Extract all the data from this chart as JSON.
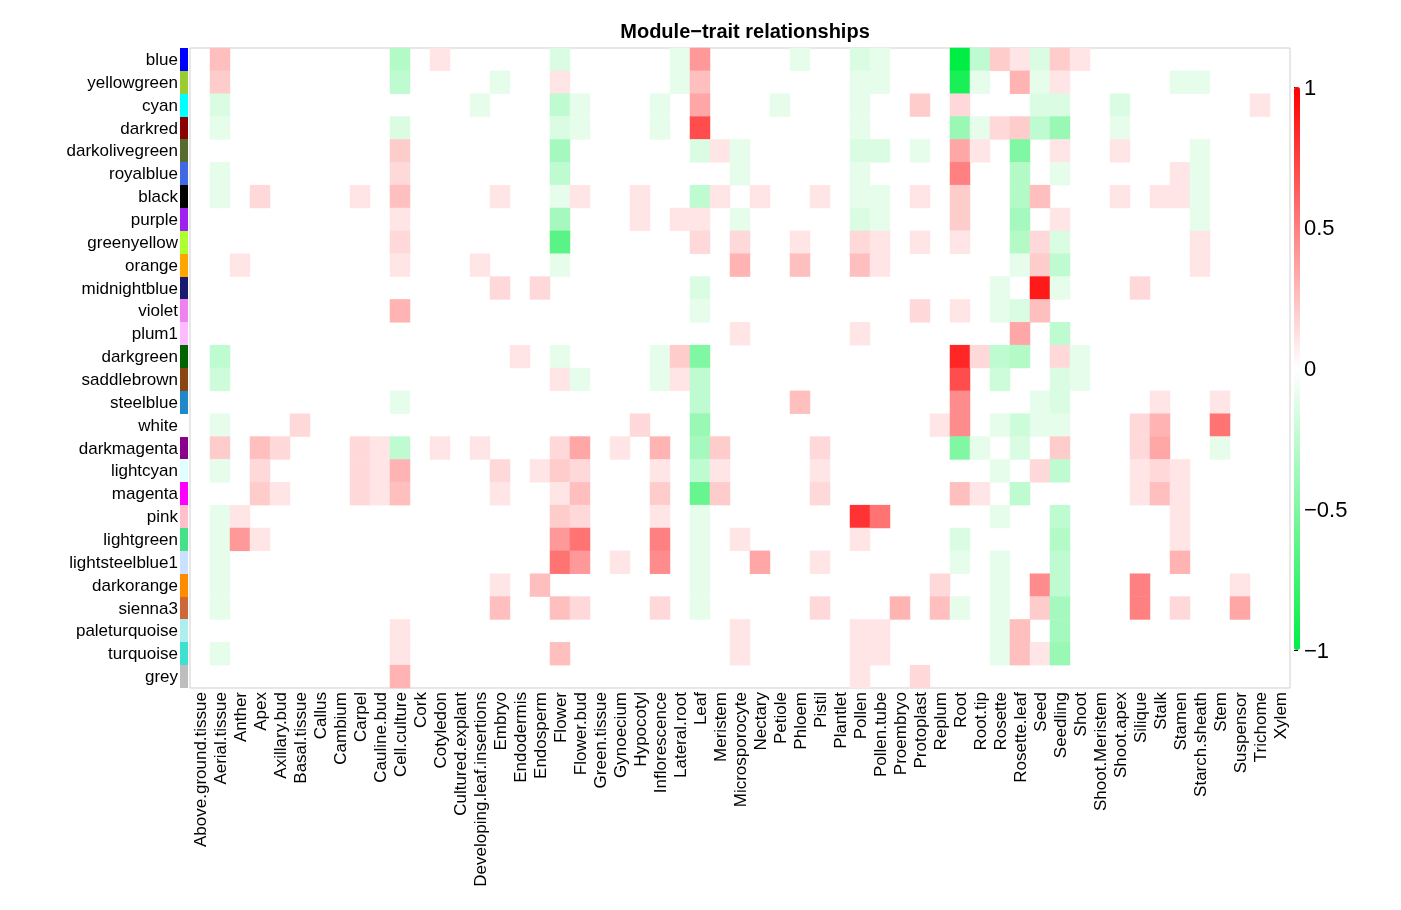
{
  "chart_data": {
    "type": "heatmap",
    "title": "Module−trait relationships",
    "categories": [
      "Above.ground.tissue",
      "Aerial.tissue",
      "Anther",
      "Apex",
      "Axillary.bud",
      "Basal.tissue",
      "Callus",
      "Cambium",
      "Carpel",
      "Cauline.bud",
      "Cell.culture",
      "Cork",
      "Cotyledon",
      "Cultured.explant",
      "Developing.leaf.insertions",
      "Embryo",
      "Endodermis",
      "Endosperm",
      "Flower",
      "Flower.bud",
      "Green.tissue",
      "Gynoecium",
      "Hypocotyl",
      "Inflorescence",
      "Lateral.root",
      "Leaf",
      "Meristem",
      "Microsporocyte",
      "Nectary",
      "Petiole",
      "Phloem",
      "Pistil",
      "Plantlet",
      "Pollen",
      "Pollen.tube",
      "Proembryo",
      "Protoplast",
      "Replum",
      "Root",
      "Root.tip",
      "Rosette",
      "Rosette.leaf",
      "Seed",
      "Seedling",
      "Shoot",
      "Shoot.Meristem",
      "Shoot.apex",
      "Silique",
      "Stalk",
      "Stamen",
      "Starch.sheath",
      "Stem",
      "Suspensor",
      "Trichome",
      "Xylem"
    ],
    "y_categories": [
      "blue",
      "yellowgreen",
      "cyan",
      "darkred",
      "darkolivegreen",
      "royalblue",
      "black",
      "purple",
      "greenyellow",
      "orange",
      "midnightblue",
      "violet",
      "plum1",
      "darkgreen",
      "saddlebrown",
      "steelblue",
      "white",
      "darkmagenta",
      "lightcyan",
      "magenta",
      "pink",
      "lightgreen",
      "lightsteelblue1",
      "darkorange",
      "sienna3",
      "paleturquoise",
      "turquoise",
      "grey"
    ],
    "colors": [
      "#0000ff",
      "#9acd32",
      "#00ffff",
      "#8b0000",
      "#556b2f",
      "#4169e1",
      "#000000",
      "#a020f0",
      "#adff2f",
      "#ffa500",
      "#191970",
      "#ee82ee",
      "#ffbbff",
      "#006400",
      "#8b4513",
      "#1e88c8",
      "#ffffff",
      "#8b008b",
      "#e0ffff",
      "#ff00ff",
      "#ffc0cb",
      "#44e08a",
      "#cae1ff",
      "#ff8c00",
      "#cd6839",
      "#afeeee",
      "#40e0d0",
      "#bebebe"
    ],
    "clim": [
      -1,
      1
    ],
    "cticks": [
      {
        "value": -1,
        "label": "−1"
      },
      {
        "value": -0.5,
        "label": "−0.5"
      },
      0,
      0.5,
      1
    ],
    "cells": [
      [
        null,
        0.25,
        null,
        null,
        null,
        null,
        null,
        null,
        null,
        null,
        -0.3,
        null,
        0.1,
        null,
        null,
        null,
        null,
        null,
        -0.15,
        null,
        null,
        null,
        null,
        null,
        -0.1,
        0.4,
        null,
        null,
        null,
        null,
        -0.1,
        null,
        null,
        -0.15,
        -0.1,
        null,
        null,
        null,
        -1,
        -0.25,
        0.2,
        0.1,
        -0.15,
        0.2,
        0.1,
        null,
        null,
        null,
        null,
        null,
        null,
        null,
        null,
        null,
        null
      ],
      [
        null,
        0.2,
        null,
        null,
        null,
        null,
        null,
        null,
        null,
        null,
        -0.25,
        null,
        null,
        null,
        null,
        -0.1,
        null,
        null,
        0.1,
        null,
        null,
        null,
        null,
        null,
        -0.1,
        0.25,
        null,
        null,
        null,
        null,
        null,
        null,
        null,
        -0.1,
        -0.1,
        null,
        null,
        null,
        -0.9,
        -0.1,
        null,
        0.3,
        -0.1,
        0.1,
        null,
        null,
        null,
        null,
        null,
        -0.1,
        -0.1,
        null,
        null,
        null,
        null
      ],
      [
        null,
        -0.15,
        null,
        null,
        null,
        null,
        null,
        null,
        null,
        null,
        null,
        null,
        null,
        null,
        -0.1,
        null,
        null,
        null,
        -0.25,
        -0.1,
        null,
        null,
        null,
        -0.1,
        null,
        0.35,
        null,
        null,
        null,
        -0.1,
        null,
        null,
        null,
        -0.1,
        null,
        null,
        0.2,
        null,
        0.15,
        null,
        null,
        null,
        -0.15,
        -0.15,
        null,
        null,
        -0.15,
        null,
        null,
        null,
        null,
        null,
        null,
        0.1,
        null
      ],
      [
        null,
        -0.1,
        null,
        null,
        null,
        null,
        null,
        null,
        null,
        null,
        -0.15,
        null,
        null,
        null,
        null,
        null,
        null,
        null,
        -0.15,
        -0.1,
        null,
        null,
        null,
        -0.1,
        null,
        0.7,
        null,
        null,
        null,
        null,
        null,
        null,
        null,
        -0.1,
        null,
        null,
        null,
        null,
        -0.4,
        -0.1,
        0.15,
        0.2,
        -0.25,
        -0.4,
        null,
        null,
        -0.1,
        null,
        null,
        null,
        null,
        null,
        null,
        null,
        null
      ],
      [
        null,
        null,
        null,
        null,
        null,
        null,
        null,
        null,
        null,
        null,
        0.2,
        null,
        null,
        null,
        null,
        null,
        null,
        null,
        -0.35,
        null,
        null,
        null,
        null,
        null,
        null,
        -0.15,
        0.1,
        -0.1,
        null,
        null,
        null,
        null,
        null,
        -0.15,
        -0.15,
        null,
        -0.1,
        null,
        0.35,
        0.1,
        null,
        -0.5,
        null,
        0.1,
        null,
        null,
        0.1,
        null,
        null,
        null,
        -0.1,
        null,
        null,
        null,
        null
      ],
      [
        null,
        -0.1,
        null,
        null,
        null,
        null,
        null,
        null,
        null,
        null,
        0.15,
        null,
        null,
        null,
        null,
        null,
        null,
        null,
        -0.25,
        null,
        null,
        null,
        null,
        null,
        null,
        null,
        null,
        -0.1,
        null,
        null,
        null,
        null,
        null,
        -0.1,
        null,
        null,
        null,
        null,
        0.5,
        null,
        null,
        -0.3,
        null,
        -0.1,
        null,
        null,
        null,
        null,
        null,
        0.1,
        -0.1,
        null,
        null,
        null,
        null
      ],
      [
        null,
        -0.1,
        null,
        0.15,
        null,
        null,
        null,
        null,
        0.1,
        null,
        0.25,
        null,
        null,
        null,
        null,
        0.1,
        null,
        null,
        -0.1,
        0.1,
        null,
        null,
        0.1,
        null,
        null,
        -0.25,
        0.1,
        null,
        0.1,
        null,
        null,
        0.1,
        null,
        -0.1,
        -0.1,
        null,
        0.1,
        null,
        0.2,
        null,
        null,
        -0.3,
        0.25,
        null,
        null,
        null,
        0.1,
        null,
        0.1,
        0.1,
        -0.1,
        null,
        null,
        null,
        null
      ],
      [
        null,
        null,
        null,
        null,
        null,
        null,
        null,
        null,
        null,
        null,
        0.1,
        null,
        null,
        null,
        null,
        null,
        null,
        null,
        -0.35,
        null,
        null,
        null,
        0.1,
        null,
        0.1,
        0.1,
        null,
        -0.1,
        null,
        null,
        null,
        null,
        null,
        -0.15,
        -0.1,
        null,
        null,
        null,
        0.2,
        null,
        null,
        -0.35,
        null,
        0.1,
        null,
        null,
        null,
        null,
        null,
        null,
        -0.1,
        null,
        null,
        null,
        null
      ],
      [
        null,
        null,
        null,
        null,
        null,
        null,
        null,
        null,
        null,
        null,
        0.15,
        null,
        null,
        null,
        null,
        null,
        null,
        null,
        -0.65,
        null,
        null,
        null,
        null,
        null,
        null,
        0.15,
        null,
        0.15,
        null,
        null,
        0.1,
        null,
        null,
        0.15,
        0.1,
        null,
        0.1,
        null,
        0.1,
        null,
        null,
        -0.3,
        0.15,
        -0.15,
        null,
        null,
        null,
        null,
        null,
        null,
        0.1,
        null,
        null,
        null,
        null
      ],
      [
        null,
        null,
        0.1,
        null,
        null,
        null,
        null,
        null,
        null,
        null,
        0.1,
        null,
        null,
        null,
        0.1,
        null,
        null,
        null,
        -0.1,
        null,
        null,
        null,
        null,
        null,
        null,
        null,
        null,
        0.3,
        null,
        null,
        0.25,
        null,
        null,
        0.25,
        0.1,
        null,
        null,
        null,
        null,
        null,
        null,
        -0.1,
        0.2,
        -0.25,
        null,
        null,
        null,
        null,
        null,
        null,
        0.1,
        null,
        null,
        null,
        null
      ],
      [
        null,
        null,
        null,
        null,
        null,
        null,
        null,
        null,
        null,
        null,
        null,
        null,
        null,
        null,
        null,
        0.15,
        null,
        0.15,
        null,
        null,
        null,
        null,
        null,
        null,
        null,
        -0.15,
        null,
        null,
        null,
        null,
        null,
        null,
        null,
        null,
        null,
        null,
        null,
        null,
        null,
        null,
        -0.1,
        null,
        0.9,
        -0.1,
        null,
        null,
        null,
        0.15,
        null,
        null,
        null,
        null,
        null,
        null,
        null
      ],
      [
        null,
        null,
        null,
        null,
        null,
        null,
        null,
        null,
        null,
        null,
        0.3,
        null,
        null,
        null,
        null,
        null,
        null,
        null,
        null,
        null,
        null,
        null,
        null,
        null,
        null,
        -0.1,
        null,
        null,
        null,
        null,
        null,
        null,
        null,
        null,
        null,
        null,
        0.15,
        null,
        0.1,
        null,
        -0.1,
        -0.15,
        0.25,
        null,
        null,
        null,
        null,
        null,
        null,
        null,
        null,
        null,
        null,
        null,
        null
      ],
      [
        null,
        null,
        null,
        null,
        null,
        null,
        null,
        null,
        null,
        null,
        null,
        null,
        null,
        null,
        null,
        null,
        null,
        null,
        null,
        null,
        null,
        null,
        null,
        null,
        null,
        null,
        null,
        0.1,
        null,
        null,
        null,
        null,
        null,
        0.1,
        null,
        null,
        null,
        null,
        null,
        null,
        null,
        0.35,
        null,
        -0.25,
        null,
        null,
        null,
        null,
        null,
        null,
        null,
        null,
        null,
        null,
        null
      ],
      [
        null,
        -0.25,
        null,
        null,
        null,
        null,
        null,
        null,
        null,
        null,
        null,
        null,
        null,
        null,
        null,
        null,
        0.1,
        null,
        -0.1,
        null,
        null,
        null,
        null,
        -0.1,
        0.2,
        -0.5,
        null,
        null,
        null,
        null,
        null,
        null,
        null,
        null,
        null,
        null,
        null,
        null,
        0.85,
        0.15,
        -0.25,
        -0.3,
        null,
        0.15,
        -0.1,
        null,
        null,
        null,
        null,
        null,
        null,
        null,
        null,
        null,
        null
      ],
      [
        null,
        -0.2,
        null,
        null,
        null,
        null,
        null,
        null,
        null,
        null,
        null,
        null,
        null,
        null,
        null,
        null,
        null,
        null,
        0.1,
        -0.1,
        null,
        null,
        null,
        -0.1,
        0.1,
        -0.25,
        null,
        null,
        null,
        null,
        null,
        null,
        null,
        null,
        null,
        null,
        null,
        null,
        0.7,
        null,
        -0.2,
        null,
        null,
        -0.15,
        -0.1,
        null,
        null,
        null,
        null,
        null,
        null,
        null,
        null,
        null,
        null
      ],
      [
        null,
        null,
        null,
        null,
        null,
        null,
        null,
        null,
        null,
        null,
        -0.1,
        null,
        null,
        null,
        null,
        null,
        null,
        null,
        null,
        null,
        null,
        null,
        null,
        null,
        null,
        -0.25,
        null,
        null,
        null,
        null,
        0.25,
        null,
        null,
        null,
        null,
        null,
        null,
        null,
        0.45,
        null,
        null,
        null,
        -0.1,
        -0.15,
        null,
        null,
        null,
        null,
        0.1,
        null,
        null,
        0.1,
        null,
        null,
        null
      ],
      [
        null,
        -0.1,
        null,
        null,
        null,
        0.15,
        null,
        null,
        null,
        null,
        null,
        null,
        null,
        null,
        null,
        null,
        null,
        null,
        null,
        null,
        null,
        null,
        0.15,
        null,
        null,
        -0.4,
        null,
        null,
        null,
        null,
        null,
        null,
        null,
        null,
        null,
        null,
        null,
        0.1,
        0.45,
        null,
        -0.1,
        -0.2,
        -0.1,
        -0.1,
        null,
        null,
        null,
        0.15,
        0.3,
        null,
        null,
        0.55,
        null,
        null,
        null
      ],
      [
        null,
        0.2,
        null,
        0.25,
        0.15,
        null,
        null,
        null,
        0.15,
        0.1,
        -0.25,
        null,
        0.1,
        null,
        0.1,
        null,
        null,
        null,
        0.15,
        0.35,
        null,
        0.1,
        null,
        0.3,
        null,
        -0.35,
        0.2,
        null,
        null,
        null,
        null,
        0.15,
        null,
        null,
        null,
        null,
        null,
        null,
        -0.5,
        -0.1,
        null,
        -0.15,
        null,
        0.2,
        null,
        null,
        null,
        0.15,
        0.35,
        null,
        null,
        -0.1,
        null,
        null,
        null
      ],
      [
        null,
        -0.1,
        null,
        0.15,
        null,
        null,
        null,
        null,
        0.15,
        0.1,
        0.3,
        null,
        null,
        null,
        null,
        0.15,
        null,
        0.1,
        0.2,
        0.15,
        null,
        null,
        null,
        0.1,
        null,
        -0.25,
        0.1,
        null,
        null,
        null,
        null,
        0.1,
        null,
        null,
        null,
        null,
        null,
        null,
        null,
        null,
        -0.1,
        null,
        0.15,
        -0.25,
        null,
        null,
        null,
        0.1,
        0.15,
        0.1,
        null,
        null,
        null,
        null,
        null
      ],
      [
        null,
        null,
        null,
        0.2,
        0.1,
        null,
        null,
        null,
        0.15,
        0.1,
        0.25,
        null,
        null,
        null,
        null,
        0.1,
        null,
        null,
        0.1,
        0.25,
        null,
        null,
        null,
        0.2,
        null,
        -0.6,
        0.2,
        null,
        null,
        null,
        null,
        0.15,
        null,
        null,
        null,
        null,
        null,
        null,
        0.25,
        0.1,
        null,
        -0.25,
        null,
        null,
        null,
        null,
        null,
        0.1,
        0.25,
        0.1,
        null,
        null,
        null,
        null,
        null
      ],
      [
        null,
        -0.1,
        0.1,
        null,
        null,
        null,
        null,
        null,
        null,
        null,
        null,
        null,
        null,
        null,
        null,
        null,
        null,
        null,
        0.2,
        0.15,
        null,
        null,
        null,
        0.1,
        null,
        -0.1,
        null,
        null,
        null,
        null,
        null,
        null,
        null,
        0.8,
        0.55,
        null,
        null,
        null,
        null,
        null,
        -0.1,
        null,
        null,
        -0.25,
        null,
        null,
        null,
        null,
        null,
        0.1,
        null,
        null,
        null,
        null,
        null
      ],
      [
        null,
        -0.1,
        0.4,
        0.1,
        null,
        null,
        null,
        null,
        null,
        null,
        null,
        null,
        null,
        null,
        null,
        null,
        null,
        null,
        0.4,
        0.55,
        null,
        null,
        null,
        0.5,
        null,
        -0.1,
        null,
        0.1,
        null,
        null,
        null,
        null,
        null,
        0.1,
        null,
        null,
        null,
        null,
        -0.15,
        null,
        null,
        null,
        null,
        -0.3,
        null,
        null,
        null,
        null,
        null,
        0.1,
        null,
        null,
        null,
        null,
        null
      ],
      [
        null,
        -0.1,
        null,
        null,
        null,
        null,
        null,
        null,
        null,
        null,
        null,
        null,
        null,
        null,
        null,
        null,
        null,
        null,
        0.55,
        0.4,
        null,
        0.1,
        null,
        0.45,
        null,
        -0.1,
        null,
        null,
        0.35,
        null,
        null,
        0.1,
        null,
        null,
        null,
        null,
        null,
        null,
        -0.1,
        null,
        -0.1,
        null,
        null,
        -0.25,
        null,
        null,
        null,
        null,
        null,
        0.3,
        null,
        null,
        null,
        null,
        null
      ],
      [
        null,
        -0.1,
        null,
        null,
        null,
        null,
        null,
        null,
        null,
        null,
        null,
        null,
        null,
        null,
        null,
        0.1,
        null,
        0.25,
        null,
        null,
        null,
        null,
        null,
        null,
        null,
        -0.1,
        null,
        null,
        null,
        null,
        null,
        null,
        null,
        null,
        null,
        null,
        null,
        0.15,
        null,
        null,
        -0.1,
        null,
        0.45,
        -0.25,
        null,
        null,
        null,
        0.5,
        null,
        null,
        null,
        null,
        0.1,
        null,
        null
      ],
      [
        null,
        -0.1,
        null,
        null,
        null,
        null,
        null,
        null,
        null,
        null,
        null,
        null,
        null,
        null,
        null,
        0.25,
        null,
        null,
        0.25,
        0.15,
        null,
        null,
        null,
        0.15,
        null,
        -0.1,
        null,
        null,
        null,
        null,
        null,
        0.15,
        null,
        null,
        null,
        0.3,
        null,
        0.25,
        -0.1,
        null,
        -0.1,
        null,
        0.2,
        -0.35,
        null,
        null,
        null,
        0.5,
        null,
        0.15,
        null,
        null,
        0.35,
        null,
        null
      ],
      [
        null,
        null,
        null,
        null,
        null,
        null,
        null,
        null,
        null,
        null,
        0.1,
        null,
        null,
        null,
        null,
        null,
        null,
        null,
        null,
        null,
        null,
        null,
        null,
        null,
        null,
        null,
        null,
        0.1,
        null,
        null,
        null,
        null,
        null,
        0.1,
        0.1,
        null,
        null,
        null,
        null,
        null,
        -0.1,
        0.25,
        null,
        -0.35,
        null,
        null,
        null,
        null,
        null,
        null,
        null,
        null,
        null,
        null,
        null
      ],
      [
        null,
        -0.1,
        null,
        null,
        null,
        null,
        null,
        null,
        null,
        null,
        0.1,
        null,
        null,
        null,
        null,
        null,
        null,
        null,
        0.25,
        null,
        null,
        null,
        null,
        null,
        null,
        null,
        null,
        0.1,
        null,
        null,
        null,
        null,
        null,
        0.1,
        0.1,
        null,
        null,
        null,
        null,
        null,
        -0.1,
        0.25,
        0.1,
        -0.4,
        null,
        null,
        null,
        null,
        null,
        null,
        null,
        null,
        null,
        null,
        null
      ],
      [
        null,
        null,
        null,
        null,
        null,
        null,
        null,
        null,
        null,
        null,
        0.3,
        null,
        null,
        null,
        null,
        null,
        null,
        null,
        null,
        null,
        null,
        null,
        null,
        null,
        null,
        null,
        null,
        null,
        null,
        null,
        null,
        null,
        null,
        0.1,
        null,
        null,
        0.15,
        null,
        null,
        null,
        null,
        null,
        null,
        null,
        null,
        null,
        null,
        null,
        null,
        null,
        null,
        null,
        null,
        null,
        null
      ]
    ]
  }
}
